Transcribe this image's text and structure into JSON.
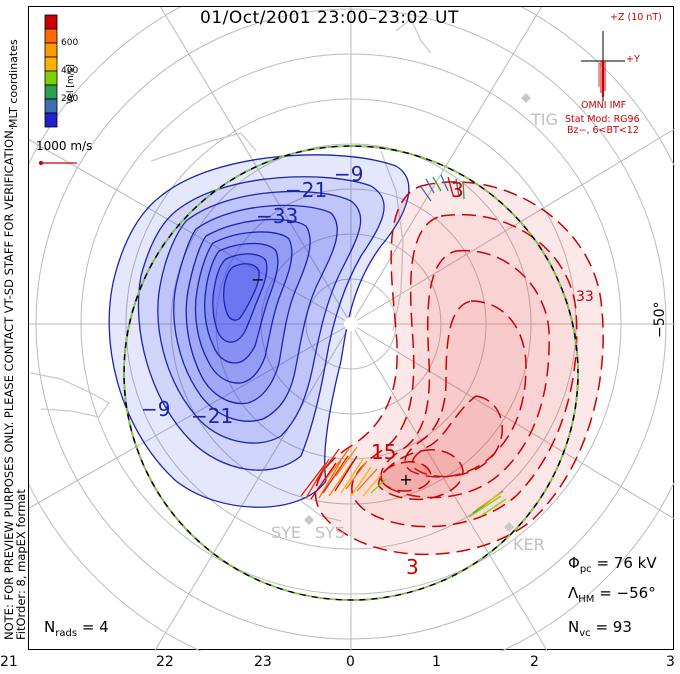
{
  "title": "01/Oct/2001 23:00–23:02 UT",
  "left_note": "NOTE: FOR PREVIEW PURPOSES ONLY. PLEASE CONTACT VT-SD STAFF FOR VERIFICATION.",
  "fit_order": "FitOrder: 8, mapEX format",
  "coords": "MLT coordinates",
  "colorbar": {
    "label": "Vel [m/s]",
    "ticks": [
      "600",
      "400",
      "200"
    ],
    "colors": [
      "#cc0000",
      "#ff6a00",
      "#ffb000",
      "#7fd000",
      "#2aa050",
      "#3c6fb0",
      "#2222cc"
    ]
  },
  "vector_scale": "1000 m/s",
  "imf": {
    "z_label": "+Z (10 nT)",
    "y_label": "+Y",
    "source": "OMNI IMF",
    "model": "Stat Mod: RG96",
    "condition": "Bz−, 6<BT<12"
  },
  "stations": [
    "TIG",
    "SYE",
    "SYS",
    "KER"
  ],
  "lat_label": "−50°",
  "contour_labels_neg": [
    "−9",
    "−21",
    "−33",
    "−9",
    "−21"
  ],
  "contour_labels_pos": [
    "3",
    "15",
    "3",
    "33"
  ],
  "extrema": {
    "min": "−",
    "max": "+"
  },
  "stats": {
    "phi_label": "Φ",
    "phi_sub": "pc",
    "phi_value": "= 76 kV",
    "lambda_label": "Λ",
    "lambda_sub": "HM",
    "lambda_value": "= −56°",
    "nvc_label": "N",
    "nvc_sub": "vc",
    "nvc_value": "= 93",
    "nrads_label": "N",
    "nrads_sub": "rads",
    "nrads_value": "= 4"
  },
  "x_ticks": [
    "21",
    "22",
    "23",
    "0",
    "1",
    "2",
    "3"
  ]
}
